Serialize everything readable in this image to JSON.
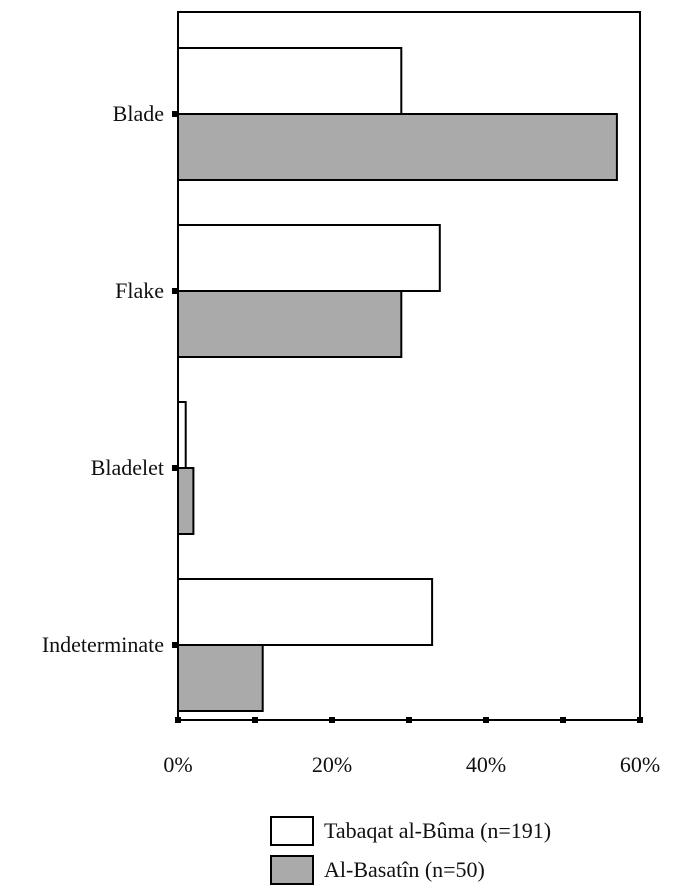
{
  "chart_data": {
    "type": "bar",
    "orientation": "horizontal",
    "categories": [
      "Blade",
      "Flake",
      "Bladelet",
      "Indeterminate"
    ],
    "series": [
      {
        "name": "Tabaqat al-Bûma (n=191)",
        "values": [
          29,
          34,
          1,
          33
        ],
        "color": "#ffffff"
      },
      {
        "name": "Al-Basatîn (n=50)",
        "values": [
          57,
          29,
          2,
          11
        ],
        "color": "#aaaaaa"
      }
    ],
    "xlim": [
      0,
      60
    ],
    "xticks": [
      0,
      20,
      40,
      60
    ],
    "xtick_labels": [
      "0%",
      "20%",
      "40%",
      "60%"
    ],
    "grid": false,
    "legend_position": "bottom-right"
  }
}
